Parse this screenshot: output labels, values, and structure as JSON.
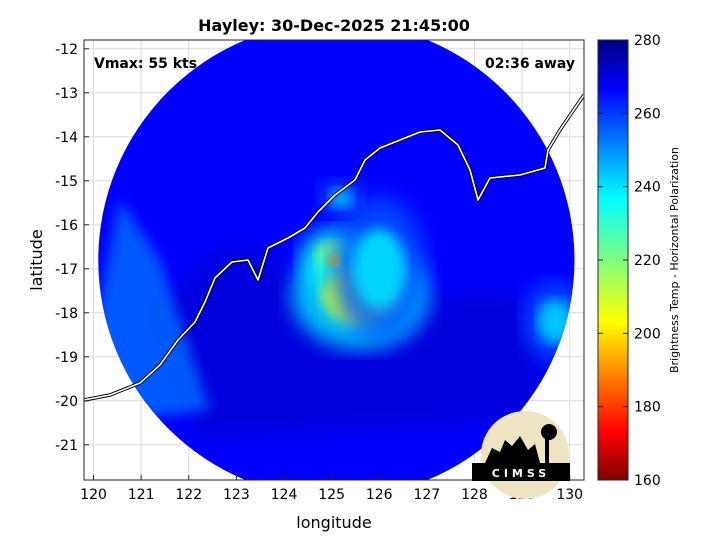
{
  "chart_data": {
    "type": "heatmap",
    "title": "Hayley: 30-Dec-2025 21:45:00",
    "xlabel": "longitude",
    "ylabel": "latitude",
    "xlim": [
      119.8,
      130.3
    ],
    "ylim": [
      -21.8,
      -11.8
    ],
    "xticks": [
      120,
      121,
      122,
      123,
      124,
      125,
      126,
      127,
      128,
      129,
      130
    ],
    "yticks": [
      -12,
      -13,
      -14,
      -15,
      -16,
      -17,
      -18,
      -19,
      -20,
      -21
    ],
    "grid": true,
    "annotations": {
      "vmax": "Vmax: 55 kts",
      "away": "02:36 away"
    },
    "colorbar": {
      "label": "Brightness Temp - Horizontal Polarization",
      "range": [
        160,
        280
      ],
      "ticks": [
        280,
        260,
        240,
        220,
        200,
        180,
        160
      ],
      "colormap": "jet"
    },
    "swath": {
      "center_lon": 125.1,
      "center_lat": -16.8,
      "radius_deg": 5.0,
      "background_temp": 265
    },
    "features": [
      {
        "name": "eyewall-north",
        "lon": 125.1,
        "lat": -16.8,
        "temp": 208
      },
      {
        "name": "rainband-south",
        "lon": 125.6,
        "lat": -17.6,
        "temp": 212
      },
      {
        "name": "spiral-band",
        "lon": 126.0,
        "lat": -17.0,
        "temp": 240
      },
      {
        "name": "east-cell",
        "lon": 129.7,
        "lat": -18.2,
        "temp": 242
      },
      {
        "name": "northeast-cell",
        "lon": 125.2,
        "lat": -15.4,
        "temp": 245
      }
    ]
  },
  "logo": {
    "text": "CIMSS"
  }
}
